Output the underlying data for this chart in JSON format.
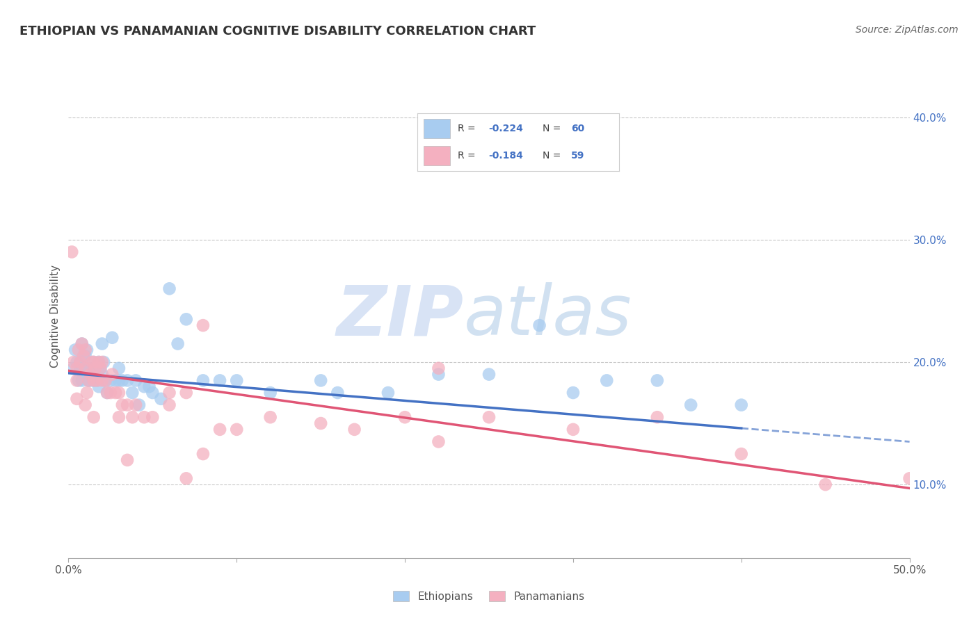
{
  "title": "ETHIOPIAN VS PANAMANIAN COGNITIVE DISABILITY CORRELATION CHART",
  "source": "Source: ZipAtlas.com",
  "ylabel": "Cognitive Disability",
  "xlim": [
    0.0,
    0.5
  ],
  "ylim": [
    0.04,
    0.435
  ],
  "ytick_labels_right": [
    "10.0%",
    "20.0%",
    "30.0%",
    "40.0%"
  ],
  "ytick_vals_right": [
    0.1,
    0.2,
    0.3,
    0.4
  ],
  "legend_r_eth": "R = -0.224",
  "legend_n_eth": "N = 60",
  "legend_r_pan": "R = -0.184",
  "legend_n_pan": "N = 59",
  "watermark": "ZIPatlas",
  "ethiopian_color": "#A8CCF0",
  "panamanian_color": "#F4B0C0",
  "trend_eth_color": "#4472C4",
  "trend_pan_color": "#E05575",
  "grid_color": "#C8C8C8",
  "ethiopian_x": [
    0.003,
    0.004,
    0.005,
    0.006,
    0.007,
    0.008,
    0.009,
    0.01,
    0.01,
    0.011,
    0.012,
    0.013,
    0.014,
    0.015,
    0.015,
    0.016,
    0.017,
    0.018,
    0.019,
    0.02,
    0.02,
    0.021,
    0.022,
    0.023,
    0.025,
    0.026,
    0.028,
    0.03,
    0.03,
    0.032,
    0.035,
    0.038,
    0.04,
    0.042,
    0.045,
    0.048,
    0.05,
    0.055,
    0.06,
    0.065,
    0.07,
    0.08,
    0.09,
    0.1,
    0.12,
    0.15,
    0.16,
    0.19,
    0.22,
    0.25,
    0.28,
    0.3,
    0.32,
    0.35,
    0.37,
    0.4,
    0.007,
    0.008,
    0.012,
    0.018
  ],
  "ethiopian_y": [
    0.195,
    0.21,
    0.2,
    0.185,
    0.2,
    0.215,
    0.205,
    0.195,
    0.205,
    0.21,
    0.195,
    0.185,
    0.19,
    0.2,
    0.185,
    0.195,
    0.185,
    0.2,
    0.195,
    0.19,
    0.215,
    0.2,
    0.185,
    0.175,
    0.185,
    0.22,
    0.185,
    0.195,
    0.185,
    0.185,
    0.185,
    0.175,
    0.185,
    0.165,
    0.18,
    0.18,
    0.175,
    0.17,
    0.26,
    0.215,
    0.235,
    0.185,
    0.185,
    0.185,
    0.175,
    0.185,
    0.175,
    0.175,
    0.19,
    0.19,
    0.23,
    0.175,
    0.185,
    0.185,
    0.165,
    0.165,
    0.195,
    0.185,
    0.185,
    0.18
  ],
  "panamanian_x": [
    0.002,
    0.003,
    0.005,
    0.005,
    0.006,
    0.007,
    0.008,
    0.009,
    0.01,
    0.01,
    0.011,
    0.012,
    0.013,
    0.014,
    0.015,
    0.015,
    0.016,
    0.017,
    0.018,
    0.019,
    0.02,
    0.02,
    0.022,
    0.023,
    0.025,
    0.026,
    0.028,
    0.03,
    0.032,
    0.035,
    0.038,
    0.04,
    0.045,
    0.05,
    0.06,
    0.07,
    0.08,
    0.09,
    0.1,
    0.12,
    0.15,
    0.17,
    0.2,
    0.22,
    0.25,
    0.3,
    0.35,
    0.4,
    0.45,
    0.5,
    0.005,
    0.01,
    0.015,
    0.22,
    0.03,
    0.07,
    0.035,
    0.08,
    0.06
  ],
  "panamanian_y": [
    0.29,
    0.2,
    0.195,
    0.185,
    0.21,
    0.2,
    0.215,
    0.205,
    0.195,
    0.21,
    0.175,
    0.185,
    0.19,
    0.2,
    0.185,
    0.2,
    0.195,
    0.185,
    0.2,
    0.195,
    0.185,
    0.2,
    0.185,
    0.175,
    0.175,
    0.19,
    0.175,
    0.175,
    0.165,
    0.165,
    0.155,
    0.165,
    0.155,
    0.155,
    0.175,
    0.175,
    0.23,
    0.145,
    0.145,
    0.155,
    0.15,
    0.145,
    0.155,
    0.195,
    0.155,
    0.145,
    0.155,
    0.125,
    0.1,
    0.105,
    0.17,
    0.165,
    0.155,
    0.135,
    0.155,
    0.105,
    0.12,
    0.125,
    0.165
  ],
  "trend_eth_x0": 0.0,
  "trend_eth_y0": 0.191,
  "trend_eth_x1": 0.4,
  "trend_eth_y1": 0.146,
  "trend_eth_dash_x1": 0.5,
  "trend_eth_dash_y1": 0.135,
  "trend_pan_x0": 0.0,
  "trend_pan_y0": 0.193,
  "trend_pan_x1": 0.5,
  "trend_pan_y1": 0.097,
  "background_color": "#FFFFFF"
}
